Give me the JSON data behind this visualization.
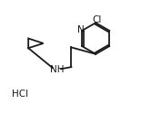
{
  "background_color": "#ffffff",
  "line_color": "#1a1a1a",
  "line_width": 1.3,
  "figsize": [
    1.66,
    1.36
  ],
  "dpi": 100,
  "hcl_text": "HCl",
  "nh_text": "NH",
  "n_text": "N",
  "cl_text": "Cl",
  "font_size": 7.5,
  "xlim": [
    0,
    10
  ],
  "ylim": [
    0,
    8
  ]
}
